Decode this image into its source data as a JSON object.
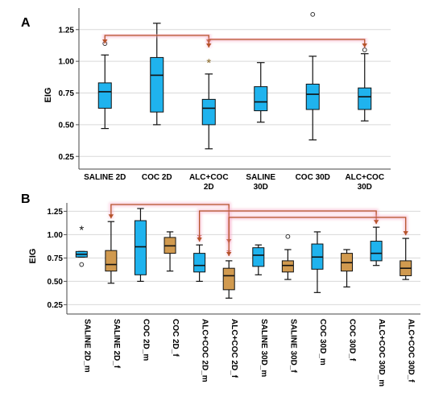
{
  "chart_data": [
    {
      "type": "box",
      "panel_label": "A",
      "ylabel": "EIG",
      "ylim": [
        0.15,
        1.42
      ],
      "yticks": [
        0.25,
        0.5,
        0.75,
        1.0,
        1.25
      ],
      "ytick_labels": [
        "0.25",
        "0.50",
        "0.75",
        "1.00",
        "1.25"
      ],
      "grid": true,
      "categories": [
        [
          "SALINE 2D"
        ],
        [
          "COC 2D"
        ],
        [
          "ALC+COC",
          "2D"
        ],
        [
          "SALINE",
          "30D"
        ],
        [
          "COC 30D"
        ],
        [
          "ALC+COC",
          "30D"
        ]
      ],
      "colors": [
        "#1fb3ee",
        "#1fb3ee",
        "#1fb3ee",
        "#1fb3ee",
        "#1fb3ee",
        "#1fb3ee"
      ],
      "boxes": [
        {
          "whislo": 0.47,
          "q1": 0.63,
          "med": 0.76,
          "q3": 0.83,
          "whishi": 1.05,
          "fliers": [
            1.14
          ]
        },
        {
          "whislo": 0.5,
          "q1": 0.6,
          "med": 0.89,
          "q3": 1.03,
          "whishi": 1.3,
          "fliers": []
        },
        {
          "whislo": 0.31,
          "q1": 0.5,
          "med": 0.63,
          "q3": 0.7,
          "whishi": 0.9,
          "fliers": []
        },
        {
          "whislo": 0.52,
          "q1": 0.61,
          "med": 0.68,
          "q3": 0.8,
          "whishi": 0.99,
          "fliers": []
        },
        {
          "whislo": 0.38,
          "q1": 0.62,
          "med": 0.74,
          "q3": 0.82,
          "whishi": 1.04,
          "fliers": [
            1.37
          ]
        },
        {
          "whislo": 0.53,
          "q1": 0.62,
          "med": 0.72,
          "q3": 0.79,
          "whishi": 1.06,
          "fliers": [
            1.09
          ]
        }
      ],
      "annotations": [
        {
          "text": "*",
          "category_index": 2,
          "y": 1.0,
          "color": "#8b6a2a"
        }
      ],
      "brackets": [
        {
          "from": 0,
          "to": 2,
          "color": "#b5532a"
        },
        {
          "from": 2,
          "to": 5,
          "color": "#b5532a"
        }
      ]
    },
    {
      "type": "box",
      "panel_label": "B",
      "ylabel": "EIG",
      "ylim": [
        0.15,
        1.34
      ],
      "yticks": [
        0.25,
        0.5,
        0.75,
        1.0,
        1.25
      ],
      "ytick_labels": [
        "0.25",
        "0.50",
        "0.75",
        "1.00",
        "1.25"
      ],
      "grid": true,
      "categories": [
        "SALINE 2D_m",
        "SALINE 2D_f",
        "COC 2D_m",
        "COC 2D_f",
        "ALC+COC 2D_m",
        "ALC+COC 2D_f",
        "SALINE 30D_m",
        "SALINE 30D_f",
        "COC 30D_m",
        "COC 30D_f",
        "ALC+COC 30D_m",
        "ALC+COC 30D_f"
      ],
      "colors": [
        "#1fb3ee",
        "#d19a4f",
        "#1fb3ee",
        "#d19a4f",
        "#1fb3ee",
        "#d19a4f",
        "#1fb3ee",
        "#d19a4f",
        "#1fb3ee",
        "#d19a4f",
        "#1fb3ee",
        "#d19a4f"
      ],
      "boxes": [
        {
          "whislo": 0.76,
          "q1": 0.76,
          "med": 0.79,
          "q3": 0.82,
          "whishi": 0.82,
          "fliers": [
            0.68
          ],
          "extremes": [
            1.05
          ]
        },
        {
          "whislo": 0.48,
          "q1": 0.61,
          "med": 0.68,
          "q3": 0.83,
          "whishi": 1.14,
          "fliers": []
        },
        {
          "whislo": 0.5,
          "q1": 0.57,
          "med": 0.87,
          "q3": 1.15,
          "whishi": 1.28,
          "fliers": []
        },
        {
          "whislo": 0.61,
          "q1": 0.8,
          "med": 0.88,
          "q3": 0.97,
          "whishi": 1.03,
          "fliers": []
        },
        {
          "whislo": 0.5,
          "q1": 0.6,
          "med": 0.67,
          "q3": 0.8,
          "whishi": 0.89,
          "fliers": []
        },
        {
          "whislo": 0.32,
          "q1": 0.41,
          "med": 0.56,
          "q3": 0.64,
          "whishi": 0.72,
          "fliers": []
        },
        {
          "whislo": 0.57,
          "q1": 0.66,
          "med": 0.78,
          "q3": 0.86,
          "whishi": 0.89,
          "fliers": []
        },
        {
          "whislo": 0.52,
          "q1": 0.6,
          "med": 0.67,
          "q3": 0.72,
          "whishi": 0.84,
          "fliers": [
            0.98
          ]
        },
        {
          "whislo": 0.38,
          "q1": 0.63,
          "med": 0.76,
          "q3": 0.9,
          "whishi": 1.03,
          "fliers": []
        },
        {
          "whislo": 0.44,
          "q1": 0.61,
          "med": 0.7,
          "q3": 0.8,
          "whishi": 0.84,
          "fliers": []
        },
        {
          "whislo": 0.67,
          "q1": 0.72,
          "med": 0.8,
          "q3": 0.93,
          "whishi": 1.08,
          "fliers": []
        },
        {
          "whislo": 0.52,
          "q1": 0.56,
          "med": 0.64,
          "q3": 0.72,
          "whishi": 0.96,
          "fliers": []
        }
      ],
      "annotations": [
        {
          "text": "*",
          "category_index": 4,
          "y": 0.98,
          "color": "#c0392b"
        },
        {
          "text": "*",
          "category_index": 5,
          "y": 0.82,
          "color": "#c0392b"
        }
      ],
      "brackets": [
        {
          "from": 1,
          "to": 5,
          "color": "#b5532a"
        },
        {
          "from": 4,
          "to": 10,
          "color": "#b5532a"
        },
        {
          "from": 5,
          "to": 11,
          "color": "#b5532a"
        }
      ]
    }
  ]
}
